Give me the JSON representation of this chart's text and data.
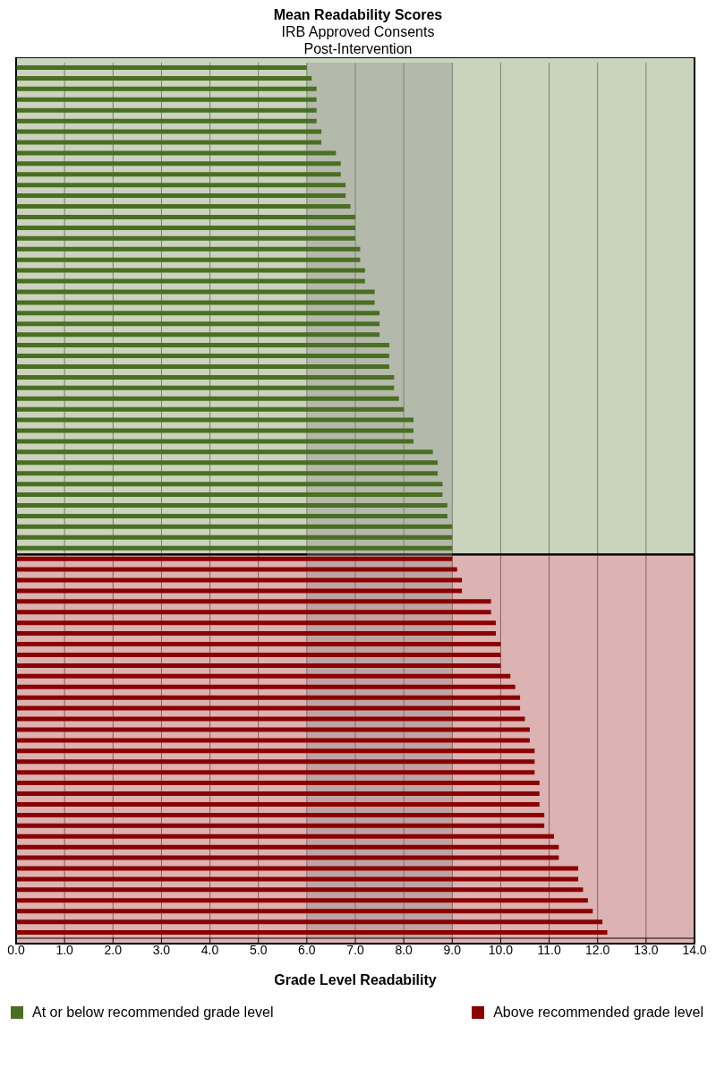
{
  "chart_data": {
    "type": "bar",
    "orientation": "horizontal",
    "stacked": true,
    "title": "Mean Readability Scores",
    "subtitle": "IRB Approved Consents\nPost-Intervention",
    "xlabel": "Grade Level Readability",
    "categories": [
      null,
      null,
      null,
      null,
      null,
      null,
      null,
      null,
      null,
      null,
      null,
      null,
      null,
      null,
      null,
      null,
      null,
      null,
      null,
      null,
      null,
      null,
      null,
      null,
      null,
      null,
      null,
      null,
      null,
      null,
      null,
      null,
      null,
      null,
      null,
      null,
      null,
      null,
      null,
      null,
      null,
      null,
      null,
      null,
      null,
      null,
      null,
      null,
      null,
      null,
      null,
      null,
      null,
      null,
      null,
      null,
      null,
      null,
      null,
      null,
      null,
      null,
      null,
      null,
      null,
      null,
      null,
      null,
      null,
      null,
      null,
      null,
      null,
      null,
      null,
      null,
      null,
      null,
      null,
      null,
      null,
      null
    ],
    "series": [
      {
        "name": "At or below recommended grade level",
        "color": "#4b6e23",
        "values": [
          6.0,
          6.1,
          6.2,
          6.2,
          6.2,
          6.2,
          6.3,
          6.3,
          6.6,
          6.7,
          6.7,
          6.8,
          6.8,
          6.9,
          7.0,
          7.0,
          7.0,
          7.1,
          7.1,
          7.2,
          7.2,
          7.4,
          7.4,
          7.5,
          7.5,
          7.5,
          7.7,
          7.7,
          7.7,
          7.8,
          7.8,
          7.9,
          8.0,
          8.2,
          8.2,
          8.2,
          8.6,
          8.7,
          8.7,
          8.8,
          8.8,
          8.9,
          8.9,
          9.0,
          9.0,
          9.0,
          null,
          null,
          null,
          null,
          null,
          null,
          null,
          null,
          null,
          null,
          null,
          null,
          null,
          null,
          null,
          null,
          null,
          null,
          null,
          null,
          null,
          null,
          null,
          null,
          null,
          null,
          null,
          null,
          null,
          null,
          null,
          null,
          null,
          null,
          null,
          null
        ]
      },
      {
        "name": "Above recommended grade level",
        "color": "#8b0000",
        "values": [
          null,
          null,
          null,
          null,
          null,
          null,
          null,
          null,
          null,
          null,
          null,
          null,
          null,
          null,
          null,
          null,
          null,
          null,
          null,
          null,
          null,
          null,
          null,
          null,
          null,
          null,
          null,
          null,
          null,
          null,
          null,
          null,
          null,
          null,
          null,
          null,
          null,
          null,
          null,
          null,
          null,
          null,
          null,
          null,
          null,
          null,
          9.0,
          9.1,
          9.2,
          9.2,
          9.8,
          9.8,
          9.9,
          9.9,
          10.0,
          10.0,
          10.0,
          10.2,
          10.3,
          10.4,
          10.4,
          10.5,
          10.6,
          10.6,
          10.7,
          10.7,
          10.7,
          10.8,
          10.8,
          10.8,
          10.9,
          10.9,
          11.1,
          11.2,
          11.2,
          11.6,
          11.6,
          11.7,
          11.8,
          11.9,
          12.1,
          12.2
        ]
      }
    ],
    "xlim": [
      0,
      14
    ],
    "xticks": [
      {
        "value": 0,
        "label": "0.0"
      },
      {
        "value": 1,
        "label": "1.0"
      },
      {
        "value": 2,
        "label": "2.0"
      },
      {
        "value": 3,
        "label": "3.0"
      },
      {
        "value": 4,
        "label": "4.0"
      },
      {
        "value": 5,
        "label": "5.0"
      },
      {
        "value": 6,
        "label": "6.0"
      },
      {
        "value": 7,
        "label": "7.0"
      },
      {
        "value": 8,
        "label": "8.0"
      },
      {
        "value": 9,
        "label": "9.0"
      },
      {
        "value": 10,
        "label": "10.0"
      },
      {
        "value": 11,
        "label": "11.0"
      },
      {
        "value": 12,
        "label": "12.0"
      },
      {
        "value": 13,
        "label": "13.0"
      },
      {
        "value": 14,
        "label": "14.0"
      }
    ],
    "bands": [
      {
        "axis": "x",
        "from": 6,
        "to": 9,
        "color": "#8a8a8a"
      }
    ],
    "grid": "x",
    "tick_labels": "x",
    "legend": "bottom"
  }
}
